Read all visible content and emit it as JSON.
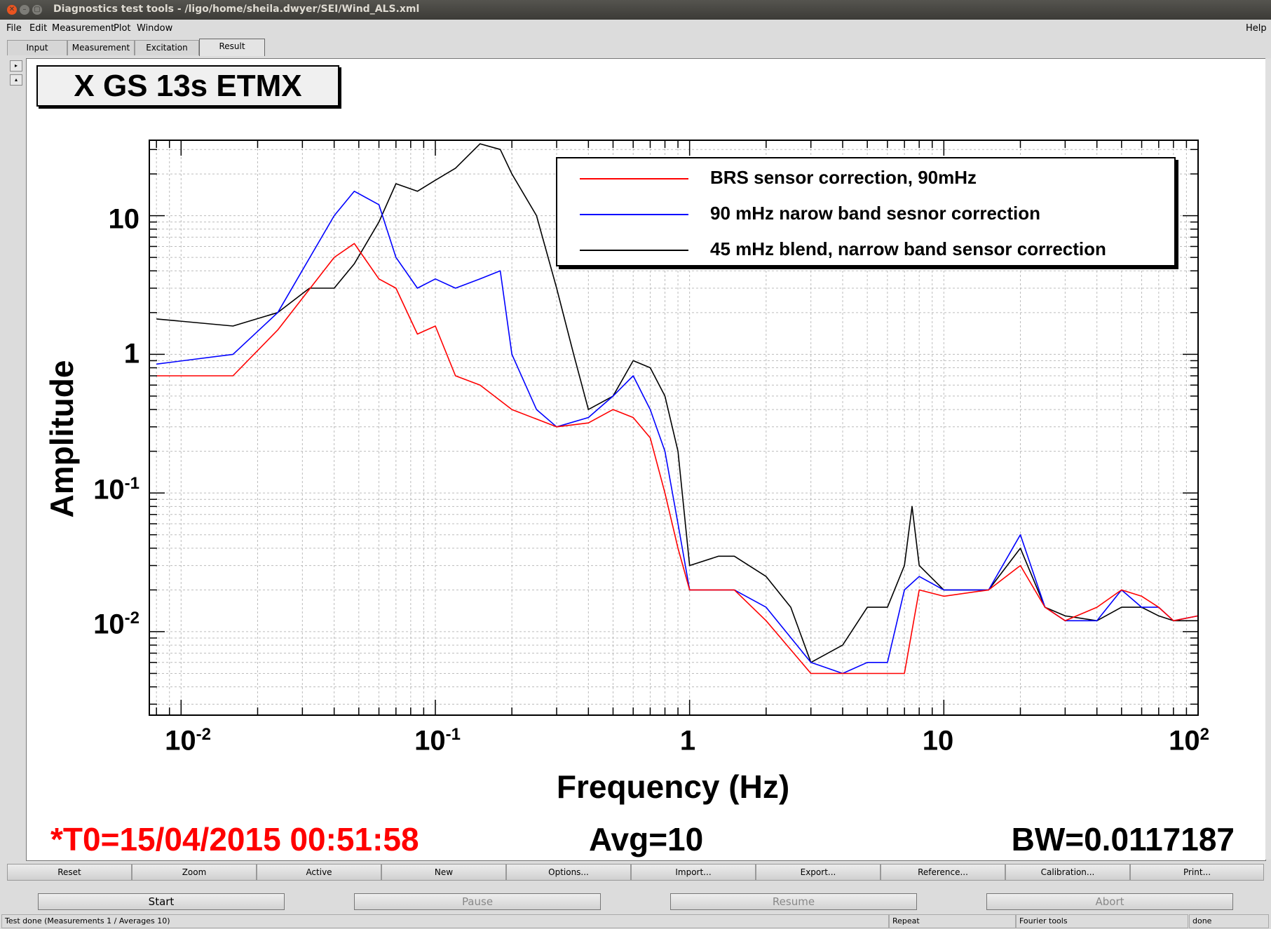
{
  "window": {
    "title": "Diagnostics test tools - /ligo/home/sheila.dwyer/SEI/Wind_ALS.xml"
  },
  "menu": {
    "file": "File",
    "edit": "Edit",
    "measurement": "Measurement",
    "plot": "Plot",
    "window": "Window",
    "help": "Help"
  },
  "tabs": [
    "Input",
    "Measurement",
    "Excitation",
    "Result"
  ],
  "side_controls": {
    "expand": "▸",
    "collapse": "▴"
  },
  "plot": {
    "title": "X GS 13s ETMX",
    "y_label": "Amplitude",
    "x_label": "Frequency (Hz)",
    "y_ticks": [
      {
        "base": "10",
        "exp": "-2"
      },
      {
        "base": "10",
        "exp": "-1"
      },
      {
        "base": "1",
        "exp": ""
      },
      {
        "base": "10",
        "exp": ""
      }
    ],
    "x_ticks": [
      {
        "base": "10",
        "exp": "-2"
      },
      {
        "base": "10",
        "exp": "-1"
      },
      {
        "base": "1",
        "exp": ""
      },
      {
        "base": "10",
        "exp": ""
      },
      {
        "base": "10",
        "exp": "2"
      }
    ],
    "t0": "*T0=15/04/2015 00:51:58",
    "avg": "Avg=10",
    "bw": "BW=0.0117187"
  },
  "chart_data": {
    "type": "line",
    "title": "X GS 13s ETMX",
    "xlabel": "Frequency (Hz)",
    "ylabel": "Amplitude",
    "xscale": "log",
    "yscale": "log",
    "xlim": [
      0.0075,
      100
    ],
    "ylim": [
      0.0025,
      35
    ],
    "grid": true,
    "legend_position": "top-right",
    "series": [
      {
        "name": "BRS sensor correction, 90mHz",
        "color": "#ff0000",
        "x": [
          0.008,
          0.016,
          0.024,
          0.04,
          0.048,
          0.06,
          0.07,
          0.085,
          0.1,
          0.12,
          0.15,
          0.2,
          0.3,
          0.4,
          0.5,
          0.6,
          0.7,
          0.8,
          0.9,
          1.0,
          1.5,
          2.0,
          3.0,
          4.0,
          5.0,
          6.0,
          7.0,
          8.0,
          10,
          15,
          20,
          25,
          30,
          40,
          50,
          60,
          70,
          80,
          100
        ],
        "y": [
          0.7,
          0.7,
          1.5,
          5.0,
          6.3,
          3.5,
          3.0,
          1.4,
          1.6,
          0.7,
          0.6,
          0.4,
          0.3,
          0.32,
          0.4,
          0.35,
          0.25,
          0.1,
          0.04,
          0.02,
          0.02,
          0.012,
          0.005,
          0.005,
          0.005,
          0.005,
          0.005,
          0.02,
          0.018,
          0.02,
          0.03,
          0.015,
          0.012,
          0.015,
          0.02,
          0.018,
          0.015,
          0.012,
          0.013
        ]
      },
      {
        "name": "90 mHz narow band sesnor correction",
        "color": "#0000ff",
        "x": [
          0.008,
          0.016,
          0.024,
          0.04,
          0.048,
          0.06,
          0.07,
          0.085,
          0.1,
          0.12,
          0.15,
          0.18,
          0.2,
          0.25,
          0.3,
          0.4,
          0.5,
          0.6,
          0.7,
          0.8,
          0.9,
          1.0,
          1.5,
          2.0,
          3.0,
          4.0,
          5.0,
          6.0,
          7.0,
          8.0,
          10,
          15,
          20,
          25,
          30,
          40,
          50,
          60,
          70,
          80,
          100
        ],
        "y": [
          0.85,
          1.0,
          2.0,
          10.0,
          15.0,
          12.0,
          5.0,
          3.0,
          3.5,
          3.0,
          3.5,
          4.0,
          1.0,
          0.4,
          0.3,
          0.35,
          0.5,
          0.7,
          0.4,
          0.2,
          0.06,
          0.02,
          0.02,
          0.015,
          0.006,
          0.005,
          0.006,
          0.006,
          0.02,
          0.025,
          0.02,
          0.02,
          0.05,
          0.015,
          0.012,
          0.012,
          0.02,
          0.015,
          0.015,
          0.012,
          0.013
        ]
      },
      {
        "name": "45 mHz blend, narrow band sensor correction",
        "color": "#000000",
        "x": [
          0.008,
          0.016,
          0.024,
          0.032,
          0.04,
          0.048,
          0.06,
          0.07,
          0.085,
          0.1,
          0.12,
          0.15,
          0.18,
          0.2,
          0.25,
          0.3,
          0.35,
          0.4,
          0.5,
          0.6,
          0.7,
          0.8,
          0.9,
          1.0,
          1.3,
          1.5,
          2.0,
          2.5,
          3.0,
          4.0,
          5.0,
          6.0,
          7.0,
          7.5,
          8.0,
          10,
          15,
          20,
          25,
          30,
          40,
          50,
          60,
          70,
          80,
          100
        ],
        "y": [
          1.8,
          1.6,
          2.0,
          3.0,
          3.0,
          4.5,
          9.0,
          17.0,
          15.0,
          18.0,
          22.0,
          33.0,
          30.0,
          20.0,
          10.0,
          3.0,
          1.0,
          0.4,
          0.5,
          0.9,
          0.8,
          0.5,
          0.2,
          0.03,
          0.035,
          0.035,
          0.025,
          0.015,
          0.006,
          0.008,
          0.015,
          0.015,
          0.03,
          0.08,
          0.03,
          0.02,
          0.02,
          0.04,
          0.015,
          0.013,
          0.012,
          0.015,
          0.015,
          0.013,
          0.012,
          0.012
        ]
      }
    ]
  },
  "buttons_row1": [
    "Reset",
    "Zoom",
    "Active",
    "New",
    "Options...",
    "Import...",
    "Export...",
    "Reference...",
    "Calibration...",
    "Print..."
  ],
  "buttons_row2": [
    "Start",
    "Pause",
    "Resume",
    "Abort"
  ],
  "status": {
    "message": "Test done (Measurements 1 / Averages 10)",
    "mode": "Repeat",
    "tool": "Fourier tools",
    "state": "done"
  }
}
